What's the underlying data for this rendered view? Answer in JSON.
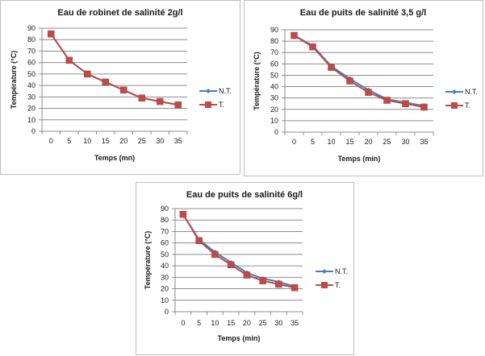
{
  "chart_data": [
    {
      "type": "line",
      "title": "Eau de robinet de salinité 2g/l",
      "xlabel": "Temps (mn)",
      "ylabel": "Température (°C)",
      "categories": [
        "0",
        "5",
        "10",
        "15",
        "20",
        "25",
        "30",
        "35"
      ],
      "yticks": [
        "0",
        "10",
        "20",
        "30",
        "40",
        "50",
        "60",
        "70",
        "80",
        "90"
      ],
      "ylim": [
        0,
        90
      ],
      "grid": true,
      "legend_position": "right",
      "series": [
        {
          "name": "N.T.",
          "color": "#4a7ebb",
          "marker": "diamond",
          "values": [
            85,
            62,
            50,
            43,
            36,
            29,
            26,
            23
          ]
        },
        {
          "name": "T.",
          "color": "#be4b48",
          "marker": "square",
          "values": [
            85,
            62,
            50,
            43,
            36,
            29,
            26,
            23
          ]
        }
      ]
    },
    {
      "type": "line",
      "title": "Eau de puits de salinité 3,5 g/l",
      "xlabel": "Temps (min)",
      "ylabel": "Température (°C)",
      "categories": [
        "0",
        "5",
        "10",
        "15",
        "20",
        "25",
        "30",
        "35"
      ],
      "yticks": [
        "0",
        "10",
        "20",
        "30",
        "40",
        "50",
        "60",
        "70",
        "80",
        "90"
      ],
      "ylim": [
        0,
        90
      ],
      "grid": true,
      "legend_position": "right",
      "series": [
        {
          "name": "N.T.",
          "color": "#4a7ebb",
          "marker": "diamond",
          "values": [
            85,
            76,
            58,
            47,
            37,
            29,
            26,
            23
          ]
        },
        {
          "name": "T.",
          "color": "#be4b48",
          "marker": "square",
          "values": [
            85,
            75,
            57,
            45,
            35,
            28,
            25,
            22
          ]
        }
      ]
    },
    {
      "type": "line",
      "title": "Eau de puits de salinité 6g/l",
      "xlabel": "Temps (min)",
      "ylabel": "Température (°C)",
      "categories": [
        "0",
        "5",
        "10",
        "15",
        "20",
        "25",
        "30",
        "35"
      ],
      "yticks": [
        "0",
        "10",
        "20",
        "30",
        "40",
        "50",
        "60",
        "70",
        "80",
        "90"
      ],
      "ylim": [
        0,
        90
      ],
      "grid": true,
      "legend_position": "right",
      "series": [
        {
          "name": "N.T.",
          "color": "#4a7ebb",
          "marker": "diamond",
          "values": [
            85,
            63,
            52,
            43,
            34,
            29,
            26,
            22
          ]
        },
        {
          "name": "T.",
          "color": "#be4b48",
          "marker": "square",
          "values": [
            85,
            62,
            50,
            41,
            32,
            27,
            24,
            21
          ]
        }
      ]
    }
  ]
}
